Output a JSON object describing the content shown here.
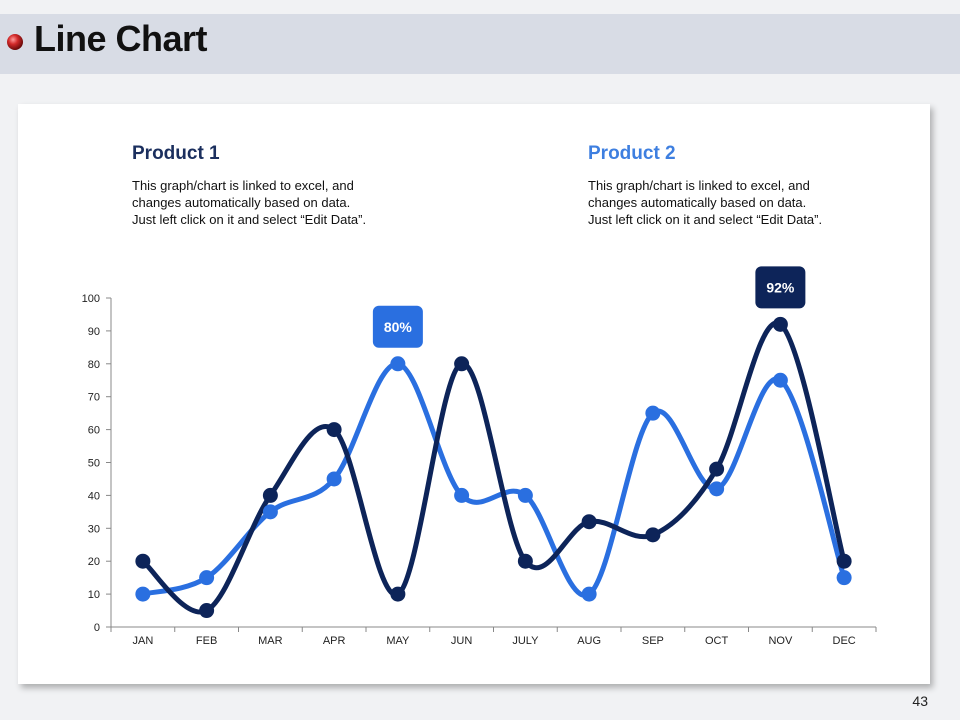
{
  "slide": {
    "title": "Line Chart",
    "page_number": "43"
  },
  "products": [
    {
      "heading": "Product 1",
      "description": "This graph/chart is linked to excel, and changes automatically based on data. Just left click on it and select “Edit Data”."
    },
    {
      "heading": "Product 2",
      "description": "This graph/chart is linked to excel, and changes automatically based on data. Just left click on it and select “Edit Data”."
    }
  ],
  "colors": {
    "product_1": "#0d2459",
    "product_2": "#2a6fe0",
    "callout_1": "#0d2459",
    "callout_2": "#2a6fe0",
    "bullet": "#cc2222"
  },
  "chart_data": {
    "type": "line",
    "categories": [
      "JAN",
      "FEB",
      "MAR",
      "APR",
      "MAY",
      "JUN",
      "JULY",
      "AUG",
      "SEP",
      "OCT",
      "NOV",
      "DEC"
    ],
    "series": [
      {
        "name": "Product 1",
        "values": [
          20,
          5,
          40,
          60,
          10,
          80,
          20,
          32,
          28,
          48,
          92,
          20
        ]
      },
      {
        "name": "Product 2",
        "values": [
          10,
          15,
          35,
          45,
          80,
          40,
          40,
          10,
          65,
          42,
          75,
          15
        ]
      }
    ],
    "ylim": [
      0,
      100
    ],
    "yticks": [
      0,
      10,
      20,
      30,
      40,
      50,
      60,
      70,
      80,
      90,
      100
    ],
    "callouts": [
      {
        "label": "80%",
        "series": 1,
        "category": "MAY"
      },
      {
        "label": "92%",
        "series": 0,
        "category": "NOV"
      }
    ],
    "title": "",
    "xlabel": "",
    "ylabel": ""
  }
}
